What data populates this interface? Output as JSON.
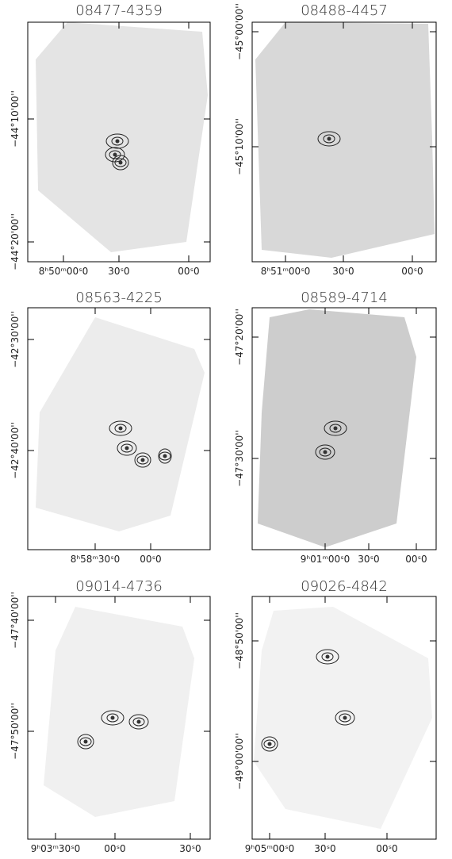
{
  "panels": [
    {
      "title": "08477-4359",
      "yticks": [
        "−44°10'00''",
        "−44°20'00''"
      ],
      "xticks": [
        "8ʰ50ᵐ00ˢ0",
        "30ˢ0",
        "00ˢ0"
      ]
    },
    {
      "title": "08488-4457",
      "yticks": [
        "−45°00'00''",
        "−45°10'00''"
      ],
      "xticks": [
        "8ʰ51ᵐ00ˢ0",
        "30ˢ0",
        "00ˢ0"
      ]
    },
    {
      "title": "08563-4225",
      "yticks": [
        "−42°30'00''",
        "−42°40'00''"
      ],
      "xticks": [
        "8ʰ58ᵐ30ˢ0",
        "00ˢ0"
      ]
    },
    {
      "title": "08589-4714",
      "yticks": [
        "−47°20'00''",
        "−47°30'00''"
      ],
      "xticks": [
        "9ʰ01ᵐ00ˢ0",
        "30ˢ0",
        "00ˢ0"
      ]
    },
    {
      "title": "09014-4736",
      "yticks": [
        "−47°40'00''",
        "−47°50'00''"
      ],
      "xticks": [
        "9ʰ03ᵐ30ˢ0",
        "00ˢ0",
        "30ˢ0"
      ]
    },
    {
      "title": "09026-4842",
      "yticks": [
        "−48°50'00''",
        "−49°00'00''"
      ],
      "xticks": [
        "9ʰ05ᵐ00ˢ0",
        "30ˢ0",
        "00ˢ0"
      ]
    }
  ]
}
